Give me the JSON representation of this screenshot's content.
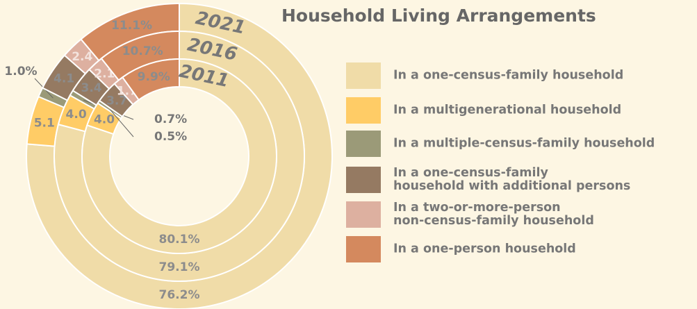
{
  "chart_data": {
    "type": "pie",
    "title": "Household Living Arrangements",
    "categories": [
      "In a one-census-family household",
      "In a multigenerational household",
      "In a multiple-census-family household",
      "In a one-census-family\nhousehold with additional persons",
      "In a two-or-more-person\nnon-census-family household",
      "In a one-person household"
    ],
    "colors": [
      "#f0dca8",
      "#ffcc66",
      "#9b9a78",
      "#957a62",
      "#ddb0a0",
      "#d4895e"
    ],
    "series": [
      {
        "name": "2021",
        "values": [
          76.2,
          5.1,
          1.0,
          4.1,
          2.4,
          11.1
        ],
        "value_labels": [
          "76.2%",
          "5.1",
          "1.0%",
          "4.1",
          "2.4",
          "11.1%"
        ]
      },
      {
        "name": "2016",
        "values": [
          79.1,
          4.0,
          0.7,
          3.4,
          2.1,
          10.7
        ],
        "value_labels": [
          "79.1%",
          "4.0",
          "0.7%",
          "3.4",
          "2.1",
          "10.7%"
        ]
      },
      {
        "name": "2011",
        "values": [
          80.1,
          4.0,
          0.5,
          3.7,
          1.7,
          9.9
        ],
        "value_labels": [
          "80.1%",
          "4.0",
          "0.5%",
          "3.7",
          "1.7",
          "9.9%"
        ]
      }
    ]
  }
}
